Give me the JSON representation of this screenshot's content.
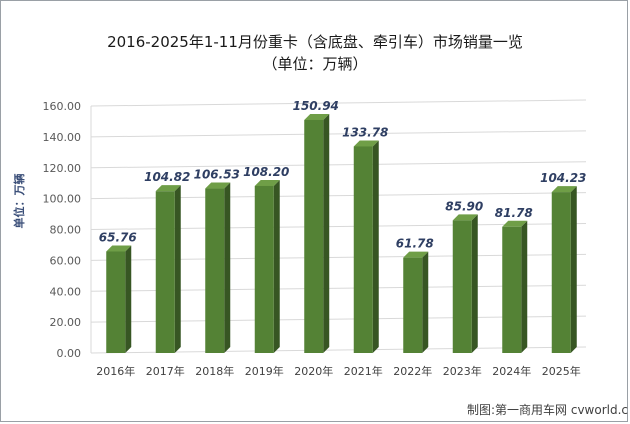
{
  "chart_data": {
    "type": "bar",
    "title": "2016-2025年1-11月份重卡（含底盘、牵引车）市场销量一览",
    "subtitle": "（单位：万辆）",
    "ylabel": "单位：万辆",
    "xlabel": "",
    "categories": [
      "2016年",
      "2017年",
      "2018年",
      "2019年",
      "2020年",
      "2021年",
      "2022年",
      "2023年",
      "2024年",
      "2025年"
    ],
    "values": [
      65.76,
      104.82,
      106.53,
      108.2,
      150.94,
      133.78,
      61.78,
      85.9,
      81.78,
      104.23
    ],
    "value_labels": [
      "65.76",
      "104.82",
      "106.53",
      "108.20",
      "150.94",
      "133.78",
      "61.78",
      "85.90",
      "81.78",
      "104.23"
    ],
    "y_ticks": [
      "0.00",
      "20.00",
      "40.00",
      "60.00",
      "80.00",
      "100.00",
      "120.00",
      "140.00",
      "160.00"
    ],
    "ylim": [
      0,
      160
    ],
    "grid": true,
    "legend": "none",
    "colors": {
      "bar_front": "#548235",
      "bar_side": "#375623",
      "bar_top": "#6f9e47",
      "grid": "#d9d9d9",
      "label": "#2f3f63"
    }
  },
  "footer": {
    "source": "制图:第一商用车网 cvworld.cn"
  }
}
